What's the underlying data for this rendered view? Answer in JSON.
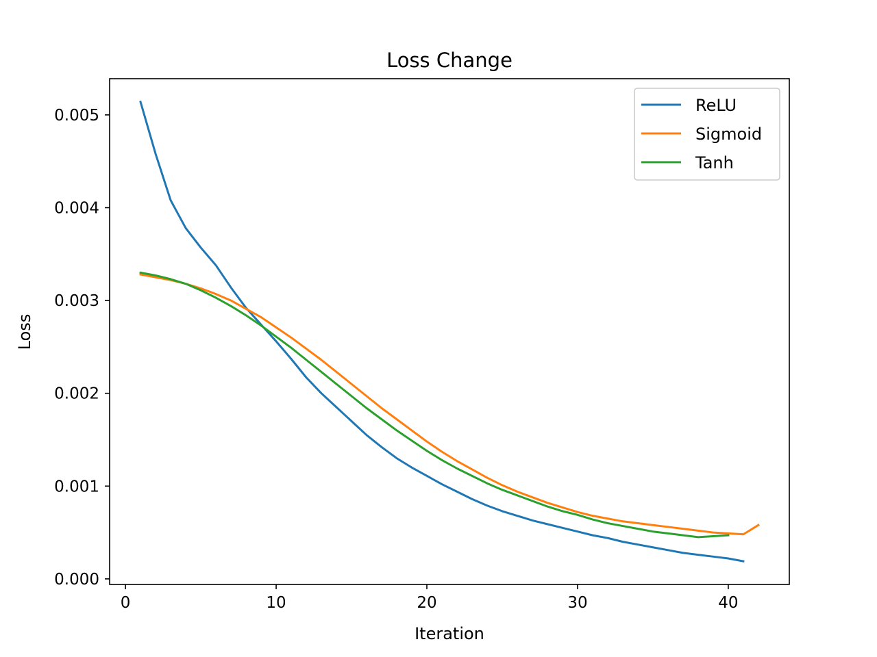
{
  "chart_data": {
    "type": "line",
    "title": "Loss Change",
    "xlabel": "Iteration",
    "ylabel": "Loss",
    "xlim": [
      -1.05,
      44.05
    ],
    "ylim": [
      -6e-05,
      0.00539
    ],
    "xticks": [
      {
        "value": 0,
        "label": "0"
      },
      {
        "value": 10,
        "label": "10"
      },
      {
        "value": 20,
        "label": "20"
      },
      {
        "value": 30,
        "label": "30"
      },
      {
        "value": 40,
        "label": "40"
      }
    ],
    "yticks": [
      {
        "value": 0.0,
        "label": "0.000"
      },
      {
        "value": 0.001,
        "label": "0.001"
      },
      {
        "value": 0.002,
        "label": "0.002"
      },
      {
        "value": 0.003,
        "label": "0.003"
      },
      {
        "value": 0.004,
        "label": "0.004"
      },
      {
        "value": 0.005,
        "label": "0.005"
      }
    ],
    "grid": false,
    "legend_position": "top-right",
    "series": [
      {
        "name": "ReLU",
        "color": "#1f77b4",
        "x": [
          1,
          2,
          3,
          4,
          5,
          6,
          7,
          8,
          9,
          10,
          11,
          12,
          13,
          14,
          15,
          16,
          17,
          18,
          19,
          20,
          21,
          22,
          23,
          24,
          25,
          26,
          27,
          28,
          29,
          30,
          31,
          32,
          33,
          34,
          35,
          36,
          37,
          38,
          39,
          40,
          41
        ],
        "y": [
          0.00514,
          0.00458,
          0.00408,
          0.00378,
          0.00357,
          0.00338,
          0.00314,
          0.00292,
          0.00274,
          0.00256,
          0.00237,
          0.00217,
          0.002,
          0.00185,
          0.0017,
          0.00155,
          0.00142,
          0.0013,
          0.0012,
          0.00111,
          0.00102,
          0.00094,
          0.00086,
          0.00079,
          0.00073,
          0.00068,
          0.00063,
          0.00059,
          0.00055,
          0.00051,
          0.00047,
          0.00044,
          0.0004,
          0.00037,
          0.00034,
          0.00031,
          0.00028,
          0.00026,
          0.00024,
          0.00022,
          0.00019
        ]
      },
      {
        "name": "Sigmoid",
        "color": "#ff7f0e",
        "x": [
          1,
          2,
          3,
          4,
          5,
          6,
          7,
          8,
          9,
          10,
          11,
          12,
          13,
          14,
          15,
          16,
          17,
          18,
          19,
          20,
          21,
          22,
          23,
          24,
          25,
          26,
          27,
          28,
          29,
          30,
          31,
          32,
          33,
          34,
          35,
          36,
          37,
          38,
          39,
          40,
          41,
          42
        ],
        "y": [
          0.00328,
          0.00325,
          0.00322,
          0.00318,
          0.00313,
          0.00307,
          0.003,
          0.00291,
          0.00282,
          0.00271,
          0.0026,
          0.00248,
          0.00236,
          0.00223,
          0.0021,
          0.00197,
          0.00184,
          0.00172,
          0.0016,
          0.00148,
          0.00137,
          0.00127,
          0.00118,
          0.00109,
          0.00101,
          0.00094,
          0.00088,
          0.00082,
          0.00077,
          0.00072,
          0.00068,
          0.00065,
          0.00062,
          0.0006,
          0.00058,
          0.00056,
          0.00054,
          0.00052,
          0.0005,
          0.00049,
          0.00048,
          0.00058
        ]
      },
      {
        "name": "Tanh",
        "color": "#2ca02c",
        "x": [
          1,
          2,
          3,
          4,
          5,
          6,
          7,
          8,
          9,
          10,
          11,
          12,
          13,
          14,
          15,
          16,
          17,
          18,
          19,
          20,
          21,
          22,
          23,
          24,
          25,
          26,
          27,
          28,
          29,
          30,
          31,
          32,
          33,
          34,
          35,
          36,
          37,
          38,
          39,
          40
        ],
        "y": [
          0.0033,
          0.00327,
          0.00323,
          0.00318,
          0.00311,
          0.00303,
          0.00294,
          0.00284,
          0.00273,
          0.00261,
          0.00249,
          0.00236,
          0.00223,
          0.0021,
          0.00197,
          0.00184,
          0.00172,
          0.0016,
          0.00149,
          0.00138,
          0.00128,
          0.00119,
          0.00111,
          0.00103,
          0.00096,
          0.0009,
          0.00084,
          0.00078,
          0.00073,
          0.00069,
          0.00064,
          0.0006,
          0.00057,
          0.00054,
          0.00051,
          0.00049,
          0.00047,
          0.00045,
          0.00046,
          0.00047
        ]
      }
    ]
  }
}
